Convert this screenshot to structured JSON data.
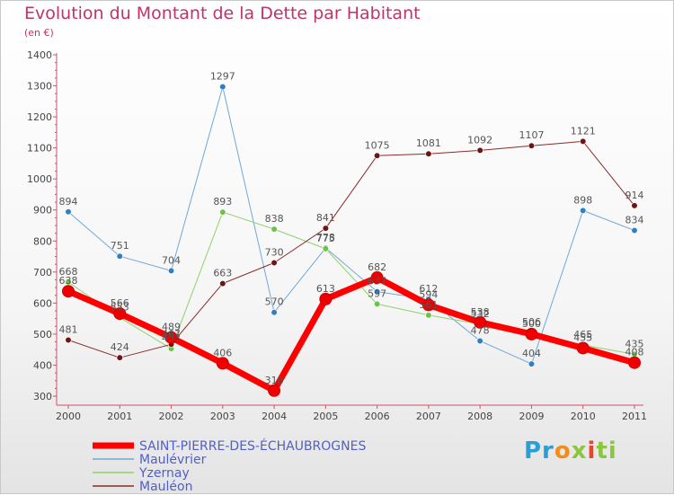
{
  "chart_data": {
    "type": "line",
    "title": "Evolution du Montant de la Dette par Habitant",
    "subtitle": "(en €)",
    "xlabel": "",
    "ylabel": "",
    "x": [
      "2000",
      "2001",
      "2002",
      "2003",
      "2004",
      "2005",
      "2006",
      "2007",
      "2008",
      "2009",
      "2010",
      "2011"
    ],
    "ylim": [
      300,
      1400
    ],
    "yticks": [
      300,
      400,
      500,
      600,
      700,
      800,
      900,
      1000,
      1100,
      1200,
      1300,
      1400
    ],
    "grid": false,
    "legend_position": "bottom-left",
    "series": [
      {
        "name": "Maulévrier",
        "color": "#6fa8d6",
        "marker": "#2f7fc2",
        "width": 1,
        "values": [
          894,
          751,
          704,
          1297,
          570,
          778,
          637,
          612,
          478,
          404,
          898,
          834
        ]
      },
      {
        "name": "Yzernay",
        "color": "#8fd16a",
        "marker": "#6cc24a",
        "width": 1,
        "values": [
          668,
          553,
          453,
          893,
          838,
          775,
          597,
          561,
          532,
          506,
          465,
          435
        ]
      },
      {
        "name": "Mauléon",
        "color": "#8a2a2a",
        "marker": "#6b1515",
        "width": 1,
        "values": [
          481,
          424,
          467,
          663,
          730,
          841,
          1075,
          1081,
          1092,
          1107,
          1121,
          914
        ]
      },
      {
        "name": "SAINT-PIERRE-DES-ÉCHAUBROGNES",
        "color": "#ff0000",
        "marker": "#ee0000",
        "width": 7,
        "values": [
          638,
          566,
          489,
          406,
          318,
          613,
          682,
          594,
          538,
          500,
          455,
          408
        ]
      }
    ],
    "legend_order": [
      3,
      0,
      1,
      2
    ]
  },
  "logo": {
    "letters": [
      "Pr",
      "o",
      "x",
      "i",
      "ti"
    ]
  }
}
